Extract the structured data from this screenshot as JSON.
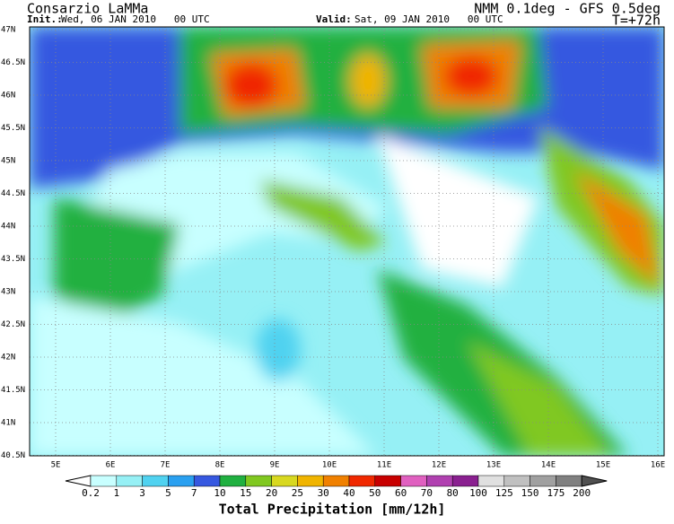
{
  "header": {
    "title": "Consarzio LaMMa",
    "init_label": "Init.:",
    "init_value": "Wed, 06 JAN 2010   00 UTC",
    "model": "NMM 0.1deg - GFS 0.5deg",
    "valid_label": "Valid:",
    "valid_value": "Sat, 09 JAN 2010   00 UTC",
    "lead": "T=+72h"
  },
  "map": {
    "lat_labels": [
      "47N",
      "46.5N",
      "46N",
      "45.5N",
      "45N",
      "44.5N",
      "44N",
      "43.5N",
      "43N",
      "42.5N",
      "42N",
      "41.5N",
      "41N",
      "40.5N"
    ],
    "lon_labels": [
      "5E",
      "6E",
      "7E",
      "8E",
      "9E",
      "10E",
      "11E",
      "12E",
      "13E",
      "14E",
      "15E",
      "16E"
    ]
  },
  "legend": {
    "ticks": [
      "0.2",
      "1",
      "3",
      "5",
      "7",
      "10",
      "15",
      "20",
      "25",
      "30",
      "40",
      "50",
      "60",
      "70",
      "80",
      "100",
      "125",
      "150",
      "175",
      "200"
    ],
    "colors": [
      "#ffffff",
      "#c8ffff",
      "#96f0f5",
      "#50d2f0",
      "#2aa0f0",
      "#3658e0",
      "#20b040",
      "#80c820",
      "#d8d820",
      "#f0b400",
      "#f08000",
      "#f02800",
      "#c80000",
      "#e060c0",
      "#b040b0",
      "#8a2090",
      "#e0e0e0",
      "#c0c0c0",
      "#a0a0a0",
      "#808080",
      "#505050"
    ],
    "title": "Total Precipitation [mm/12h]"
  }
}
